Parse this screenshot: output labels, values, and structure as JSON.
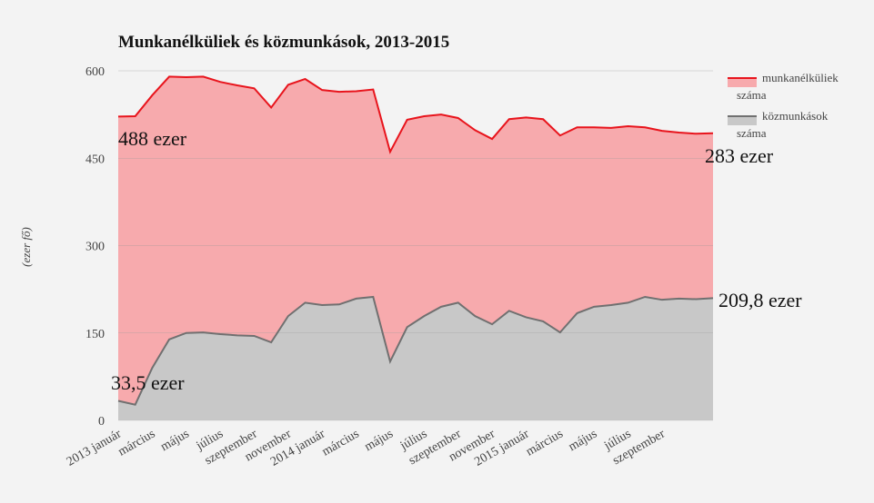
{
  "chart_data": {
    "type": "stacked_area",
    "title": "Munkanélküliek és közmunkások, 2013-2015",
    "y_label": "(ezer fő)",
    "categories": [
      "2013 január",
      null,
      "március",
      null,
      "május",
      null,
      "július",
      null,
      "szeptember",
      null,
      "november",
      null,
      "2014 január",
      null,
      "március",
      null,
      "május",
      null,
      "július",
      null,
      "szeptember",
      null,
      "november",
      null,
      "2015 január",
      null,
      "március",
      null,
      "május",
      null,
      "július",
      null,
      "szeptember",
      null,
      null,
      null
    ],
    "series": [
      {
        "name": "munkanélküliek száma",
        "color": "#e8141c",
        "fill": "#f7aaad",
        "values": [
          488,
          495,
          468,
          451,
          439,
          439,
          433,
          429,
          425,
          403,
          397,
          384,
          369,
          365,
          356,
          356,
          360,
          356,
          343,
          330,
          317,
          319,
          318,
          329,
          343,
          347,
          338,
          319,
          308,
          304,
          303,
          291,
          290,
          285,
          284,
          283
        ]
      },
      {
        "name": "közmunkások száma",
        "color": "#707070",
        "fill": "#c8c8c8",
        "values": [
          33.5,
          27,
          90,
          139,
          150,
          151,
          148,
          146,
          145,
          134,
          179,
          202,
          198,
          199,
          209,
          212,
          101,
          160,
          179,
          195,
          202,
          179,
          165,
          188,
          177,
          170,
          151,
          184,
          195,
          198,
          202,
          212,
          207,
          209,
          208,
          209.8
        ]
      }
    ],
    "annotations": [
      "488 ezer",
      "283 ezer",
      "209,8 ezer",
      "33,5 ezer"
    ],
    "ylim": [
      0,
      600
    ],
    "yticks": [
      0,
      150,
      300,
      450,
      600
    ],
    "grid": true
  }
}
